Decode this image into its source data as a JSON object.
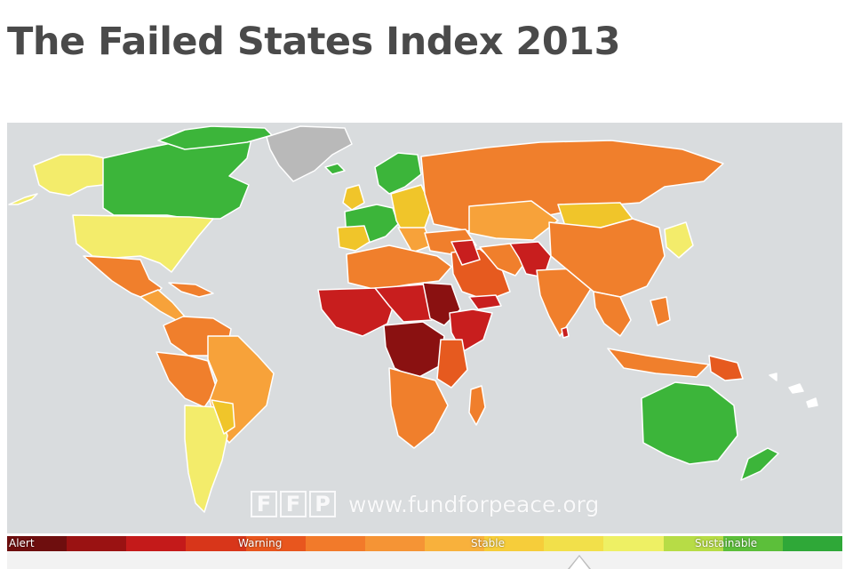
{
  "page": {
    "title": "The Failed States Index 2013"
  },
  "map": {
    "watermark": {
      "logo_letters": [
        "F",
        "F",
        "P"
      ],
      "website": "www.fundforpeace.org"
    },
    "colors": {
      "ocean": "#d9dcde",
      "no_data": "#b9b9b9",
      "sustainable": "#3cb53a",
      "stable_light": "#f3ec6b",
      "stable": "#f0c52a",
      "warning_light": "#f7a23a",
      "warning": "#f07f2c",
      "warning_dark": "#e65a1f",
      "alert": "#c81e1e",
      "alert_dark": "#8a1111"
    }
  },
  "legend": {
    "labels": {
      "alert": "Alert",
      "warning": "Warning",
      "stable": "Stable",
      "sustainable": "Sustainable"
    },
    "segments": [
      "#6e0e0e",
      "#9a1212",
      "#c41a1a",
      "#d8361a",
      "#e8561e",
      "#f27a2a",
      "#f59435",
      "#f8b13c",
      "#f6cd3a",
      "#f2e04a",
      "#eef064",
      "#b7dc46",
      "#5cbf3a",
      "#2fa838"
    ]
  }
}
